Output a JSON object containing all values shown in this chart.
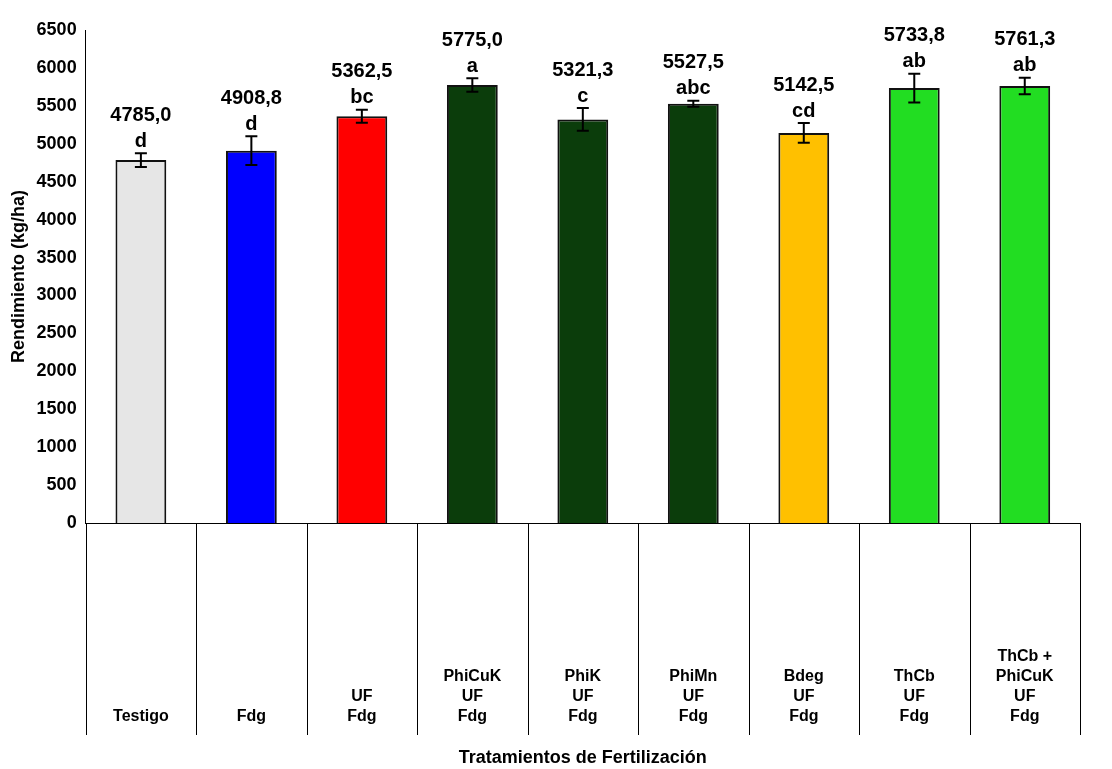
{
  "chart_data": {
    "type": "bar",
    "ylabel": "Rendimiento (kg/ha)",
    "xlabel": "Tratamientos de Fertilización",
    "categories": [
      "Testigo",
      "Fdg",
      "UF\nFdg",
      "PhiCuK\nUF\nFdg",
      "PhiK\nUF\nFdg",
      "PhiMn\nUF\nFdg",
      "Bdeg\nUF\nFdg",
      "ThCb\nUF\nFdg",
      "ThCb + PhiCuK\nUF\nFdg"
    ],
    "values": [
      4785.0,
      4908.8,
      5362.5,
      5775.0,
      5321.3,
      5527.5,
      5142.5,
      5733.8,
      5761.3
    ],
    "colors": [
      "#e6e6e6",
      "#0000ff",
      "#ff0000",
      "#0b3d0b",
      "#0b3d0b",
      "#0b3d0b",
      "#ffc000",
      "#22dd22",
      "#22dd22"
    ],
    "errors": [
      90,
      190,
      85,
      90,
      150,
      40,
      130,
      190,
      110
    ],
    "value_labels": [
      "4785,0",
      "4908,8",
      "5362,5",
      "5775,0",
      "5321,3",
      "5527,5",
      "5142,5",
      "5733,8",
      "5761,3"
    ],
    "annotations": [
      {
        "text": "d",
        "x": "Testigo",
        "y": 4785.0
      },
      {
        "text": "d",
        "x": "Fdg",
        "y": 4908.8
      },
      {
        "text": "bc",
        "x": "UF\nFdg",
        "y": 5362.5
      },
      {
        "text": "a",
        "x": "PhiCuK\nUF\nFdg",
        "y": 5775.0
      },
      {
        "text": "c",
        "x": "PhiK\nUF\nFdg",
        "y": 5321.3
      },
      {
        "text": "abc",
        "x": "PhiMn\nUF\nFdg",
        "y": 5527.5
      },
      {
        "text": "cd",
        "x": "Bdeg\nUF\nFdg",
        "y": 5142.5
      },
      {
        "text": "ab",
        "x": "ThCb\nUF\nFdg",
        "y": 5733.8
      },
      {
        "text": "ab",
        "x": "ThCb + PhiCuK\nUF\nFdg",
        "y": 5761.3
      }
    ],
    "ylim": [
      0,
      6500
    ],
    "yticks": [
      0,
      500,
      1000,
      1500,
      2000,
      2500,
      3000,
      3500,
      4000,
      4500,
      5000,
      5500,
      6000,
      6500
    ],
    "grid": false,
    "legend": false
  }
}
